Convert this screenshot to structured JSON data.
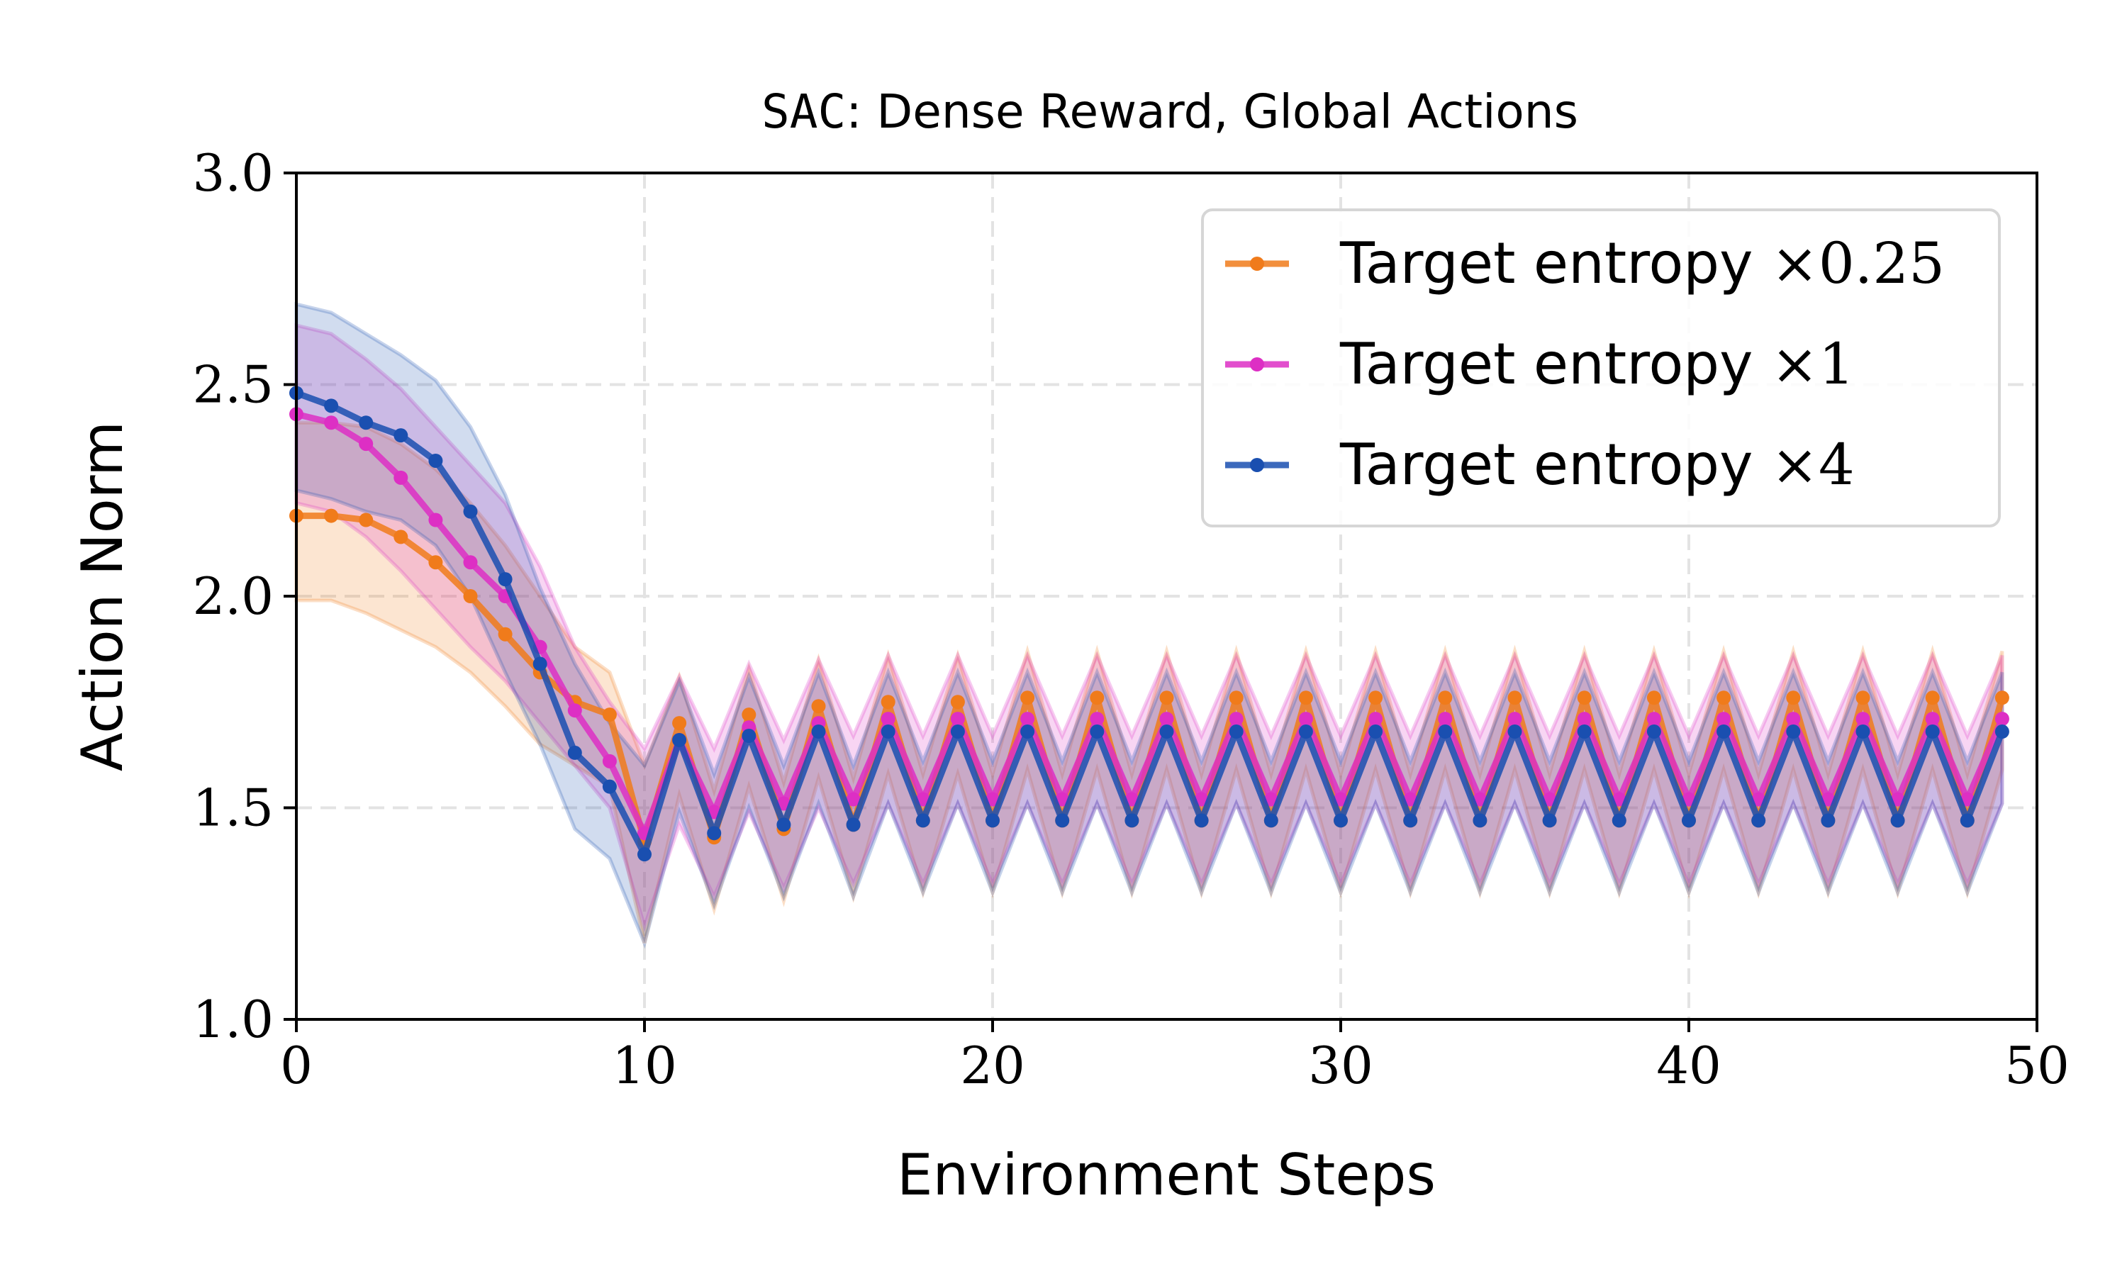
{
  "chart_data": {
    "type": "line",
    "title_mono": "SAC",
    "title_rest": ": Dense Reward, Global Actions",
    "xlabel": "Environment Steps",
    "ylabel": "Action Norm",
    "xlim": [
      0,
      50
    ],
    "ylim": [
      1.0,
      3.0
    ],
    "xticks": [
      0,
      10,
      20,
      30,
      40,
      50
    ],
    "xtick_labels": [
      "0",
      "10",
      "20",
      "30",
      "40",
      "50"
    ],
    "yticks": [
      1.0,
      1.5,
      2.0,
      2.5,
      3.0
    ],
    "ytick_labels": [
      "1.0",
      "1.5",
      "2.0",
      "2.5",
      "3.0"
    ],
    "grid": true,
    "legend_position": "top-right",
    "series": [
      {
        "name": "Target entropy ×0.25",
        "legend_text": "Target entropy",
        "legend_factor": "×0.25",
        "color": "#f07b1b",
        "mean_early": [
          2.19,
          2.19,
          2.18,
          2.14,
          2.08,
          2.0,
          1.91,
          1.82,
          1.75,
          1.72,
          1.42,
          1.7,
          1.43,
          1.72,
          1.45,
          1.74,
          1.46,
          1.75,
          1.47,
          1.75,
          1.47
        ],
        "mean_steady_odd": 1.76,
        "mean_steady_even": 1.47,
        "upper_early": [
          2.41,
          2.41,
          2.4,
          2.36,
          2.3,
          2.22,
          2.12,
          2.0,
          1.88,
          1.82,
          1.6
        ],
        "lower_early": [
          1.99,
          1.99,
          1.96,
          1.92,
          1.88,
          1.82,
          1.74,
          1.65,
          1.6,
          1.55,
          1.18
        ],
        "band_above": 0.11,
        "band_below": 0.17
      },
      {
        "name": "Target entropy ×1",
        "legend_text": "Target entropy",
        "legend_factor": "×1",
        "color": "#dd2fc4",
        "mean_early": [
          2.43,
          2.41,
          2.36,
          2.28,
          2.18,
          2.08,
          2.0,
          1.88,
          1.73,
          1.61,
          1.44,
          1.66,
          1.49,
          1.69,
          1.51,
          1.7,
          1.52,
          1.71,
          1.52,
          1.71,
          1.52
        ],
        "mean_steady_odd": 1.71,
        "mean_steady_even": 1.52,
        "upper_early": [
          2.64,
          2.62,
          2.56,
          2.49,
          2.4,
          2.31,
          2.22,
          2.07,
          1.88,
          1.75,
          1.64
        ],
        "lower_early": [
          2.22,
          2.2,
          2.14,
          2.06,
          1.97,
          1.88,
          1.8,
          1.7,
          1.6,
          1.5,
          1.22
        ],
        "band_above": 0.15,
        "band_below": 0.2
      },
      {
        "name": "Target entropy ×4",
        "legend_text": "Target entropy",
        "legend_factor": "×4",
        "color": "#1a4fb0",
        "mean_early": [
          2.48,
          2.45,
          2.41,
          2.38,
          2.32,
          2.2,
          2.04,
          1.84,
          1.63,
          1.55,
          1.39,
          1.66,
          1.44,
          1.67,
          1.46,
          1.68,
          1.46,
          1.68,
          1.47,
          1.68,
          1.47
        ],
        "mean_steady_odd": 1.68,
        "mean_steady_even": 1.47,
        "upper_early": [
          2.69,
          2.67,
          2.62,
          2.57,
          2.51,
          2.4,
          2.24,
          2.02,
          1.84,
          1.7,
          1.6
        ],
        "lower_early": [
          2.25,
          2.23,
          2.2,
          2.18,
          2.12,
          2.0,
          1.82,
          1.65,
          1.45,
          1.38,
          1.18
        ],
        "band_above": 0.14,
        "band_below": 0.17
      }
    ]
  }
}
